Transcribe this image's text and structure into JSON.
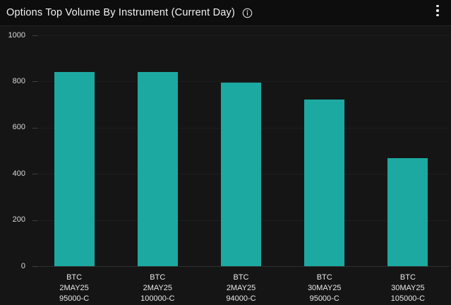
{
  "header": {
    "title": "Options Top Volume By Instrument (Current Day)",
    "info_icon": "info-circle",
    "menu_icon": "kebab-vertical-menu"
  },
  "colors": {
    "bar": "#1ca9a2",
    "panel_bg": "#151515",
    "header_bg": "#0d0d0d",
    "gridline": "#1e1e1e",
    "axis_line": "#303030",
    "text": "#e8e8e8"
  },
  "chart_data": {
    "type": "bar",
    "title": "Options Top Volume By Instrument (Current Day)",
    "categories": [
      [
        "BTC",
        "2MAY25",
        "95000-C"
      ],
      [
        "BTC",
        "2MAY25",
        "100000-C"
      ],
      [
        "BTC",
        "2MAY25",
        "94000-C"
      ],
      [
        "BTC",
        "30MAY25",
        "95000-C"
      ],
      [
        "BTC",
        "30MAY25",
        "105000-C"
      ]
    ],
    "values": [
      842,
      840,
      794,
      722,
      468
    ],
    "xlabel": "",
    "ylabel": "",
    "ylim": [
      0,
      1000
    ],
    "yticks": [
      0,
      200,
      400,
      600,
      800,
      1000
    ],
    "grid": true,
    "legend_position": "none",
    "bar_color": "#1ca9a2"
  }
}
